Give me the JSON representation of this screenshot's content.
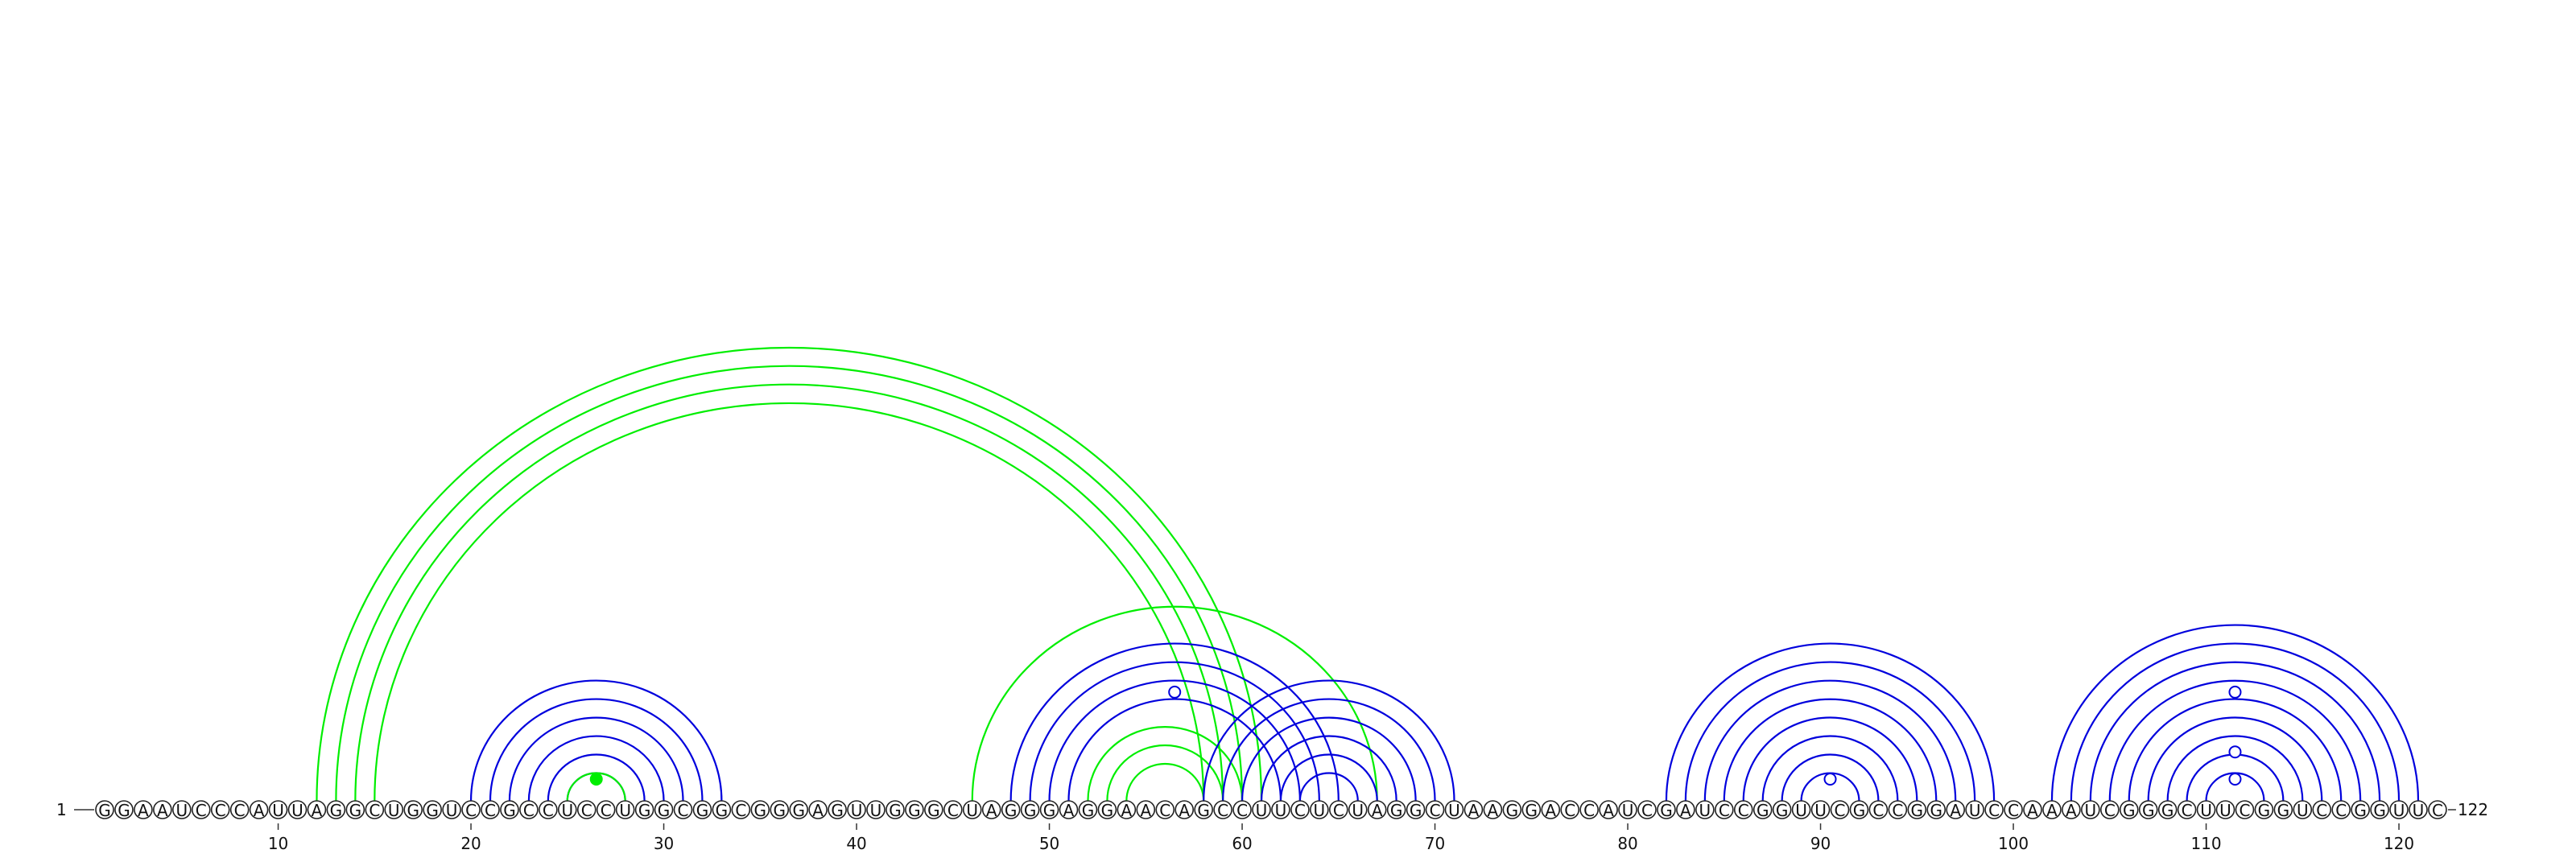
{
  "chart_data": {
    "type": "arc-diagram",
    "sequence": "GGAAUCCCAUUAGGCUGGUCCGCCUCCUGGCGGCGGGAGUUGGGCUAGGGAGGAACAGCCUUCUCUAGGCUAAGGACCAUCGAUCCGGUUCGCCGGAUCCAAAUCGGGCUUCGGUCCGGUUC",
    "length": 122,
    "start_label": "1",
    "end_label": "122",
    "tick_positions": [
      10,
      20,
      30,
      40,
      50,
      60,
      70,
      80,
      90,
      100,
      110,
      120
    ],
    "tick_labels": [
      "10",
      "20",
      "30",
      "40",
      "50",
      "60",
      "70",
      "80",
      "90",
      "100",
      "110",
      "120"
    ],
    "colors": {
      "blue": "#0000dd",
      "green": "#00ee00"
    },
    "arc_groups": [
      {
        "color": "blue",
        "pairs": [
          [
            20,
            33
          ],
          [
            21,
            32
          ],
          [
            22,
            31
          ],
          [
            23,
            30
          ],
          [
            24,
            29
          ],
          [
            25,
            28
          ]
        ]
      },
      {
        "color": "green",
        "pairs": [
          [
            25,
            28
          ]
        ]
      },
      {
        "color": "green",
        "pairs": [
          [
            12,
            61
          ],
          [
            13,
            60
          ],
          [
            14,
            59
          ],
          [
            15,
            58
          ]
        ]
      },
      {
        "color": "green",
        "pairs": [
          [
            46,
            67
          ]
        ]
      },
      {
        "color": "blue",
        "pairs": [
          [
            48,
            65
          ],
          [
            49,
            64
          ],
          [
            50,
            63
          ],
          [
            51,
            62
          ]
        ]
      },
      {
        "color": "green",
        "pairs": [
          [
            52,
            60
          ],
          [
            53,
            59
          ],
          [
            54,
            58
          ]
        ]
      },
      {
        "color": "blue",
        "pairs": [
          [
            58,
            71
          ],
          [
            59,
            70
          ],
          [
            60,
            69
          ],
          [
            61,
            68
          ],
          [
            62,
            67
          ],
          [
            63,
            66
          ]
        ]
      },
      {
        "color": "blue",
        "pairs": [
          [
            82,
            99
          ],
          [
            83,
            98
          ],
          [
            84,
            97
          ],
          [
            85,
            96
          ],
          [
            86,
            95
          ],
          [
            87,
            94
          ],
          [
            88,
            93
          ],
          [
            89,
            92
          ]
        ]
      },
      {
        "color": "blue",
        "pairs": [
          [
            102,
            121
          ],
          [
            103,
            120
          ],
          [
            104,
            119
          ],
          [
            105,
            118
          ],
          [
            106,
            117
          ],
          [
            107,
            116
          ],
          [
            108,
            115
          ],
          [
            109,
            114
          ],
          [
            110,
            113
          ]
        ]
      }
    ],
    "markers": [
      {
        "position": 26.5,
        "height": 1.0,
        "color": "green",
        "filled": true
      },
      {
        "position": 56.5,
        "height": 5.0,
        "color": "blue",
        "filled": false
      },
      {
        "position": 90.5,
        "height": 1.0,
        "color": "blue",
        "filled": false
      },
      {
        "position": 111.5,
        "height": 1.0,
        "color": "blue",
        "filled": false
      },
      {
        "position": 111.5,
        "height": 2.25,
        "color": "blue",
        "filled": false
      },
      {
        "position": 111.5,
        "height": 5.0,
        "color": "blue",
        "filled": false
      }
    ]
  }
}
